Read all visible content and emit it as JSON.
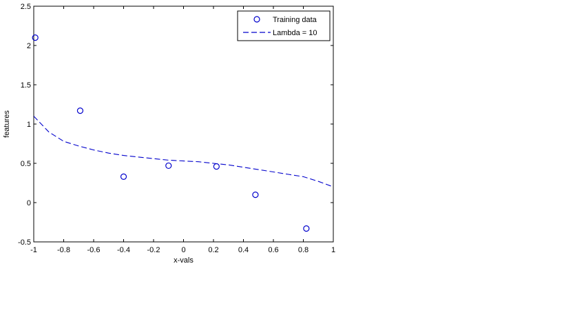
{
  "chart_data": {
    "type": "scatter",
    "title": "",
    "xlabel": "x-vals",
    "ylabel": "features",
    "xlim": [
      -1,
      1
    ],
    "ylim": [
      -0.5,
      2.5
    ],
    "grid": false,
    "legend_position": "top-right",
    "x_ticks": [
      -1,
      -0.8,
      -0.6,
      -0.4,
      -0.2,
      0,
      0.2,
      0.4,
      0.6,
      0.8,
      1
    ],
    "x_tick_labels": [
      "-1",
      "-0.8",
      "-0.6",
      "-0.4",
      "-0.2",
      "0",
      "0.2",
      "0.4",
      "0.6",
      "0.8",
      "1"
    ],
    "y_ticks": [
      -0.5,
      0,
      0.5,
      1,
      1.5,
      2,
      2.5
    ],
    "y_tick_labels": [
      "-0.5",
      "0",
      "0.5",
      "1",
      "1.5",
      "2",
      "2.5"
    ],
    "series": [
      {
        "name": "Training data",
        "kind": "scatter",
        "marker": "circle",
        "color": "#0000cc",
        "points": [
          {
            "x": -0.99,
            "y": 2.1
          },
          {
            "x": -0.69,
            "y": 1.17
          },
          {
            "x": -0.4,
            "y": 0.33
          },
          {
            "x": -0.1,
            "y": 0.47
          },
          {
            "x": 0.22,
            "y": 0.46
          },
          {
            "x": 0.48,
            "y": 0.1
          },
          {
            "x": 0.82,
            "y": -0.33
          }
        ]
      },
      {
        "name": "Lambda = 10",
        "kind": "line",
        "style": "dashed",
        "color": "#0000cc",
        "points": [
          {
            "x": -1.0,
            "y": 1.1
          },
          {
            "x": -0.9,
            "y": 0.9
          },
          {
            "x": -0.8,
            "y": 0.78
          },
          {
            "x": -0.7,
            "y": 0.72
          },
          {
            "x": -0.6,
            "y": 0.67
          },
          {
            "x": -0.5,
            "y": 0.63
          },
          {
            "x": -0.4,
            "y": 0.6
          },
          {
            "x": -0.3,
            "y": 0.58
          },
          {
            "x": -0.2,
            "y": 0.56
          },
          {
            "x": -0.1,
            "y": 0.54
          },
          {
            "x": 0.0,
            "y": 0.53
          },
          {
            "x": 0.1,
            "y": 0.52
          },
          {
            "x": 0.2,
            "y": 0.5
          },
          {
            "x": 0.3,
            "y": 0.48
          },
          {
            "x": 0.4,
            "y": 0.45
          },
          {
            "x": 0.5,
            "y": 0.42
          },
          {
            "x": 0.6,
            "y": 0.39
          },
          {
            "x": 0.7,
            "y": 0.36
          },
          {
            "x": 0.8,
            "y": 0.33
          },
          {
            "x": 0.9,
            "y": 0.27
          },
          {
            "x": 1.0,
            "y": 0.2
          }
        ]
      }
    ]
  }
}
